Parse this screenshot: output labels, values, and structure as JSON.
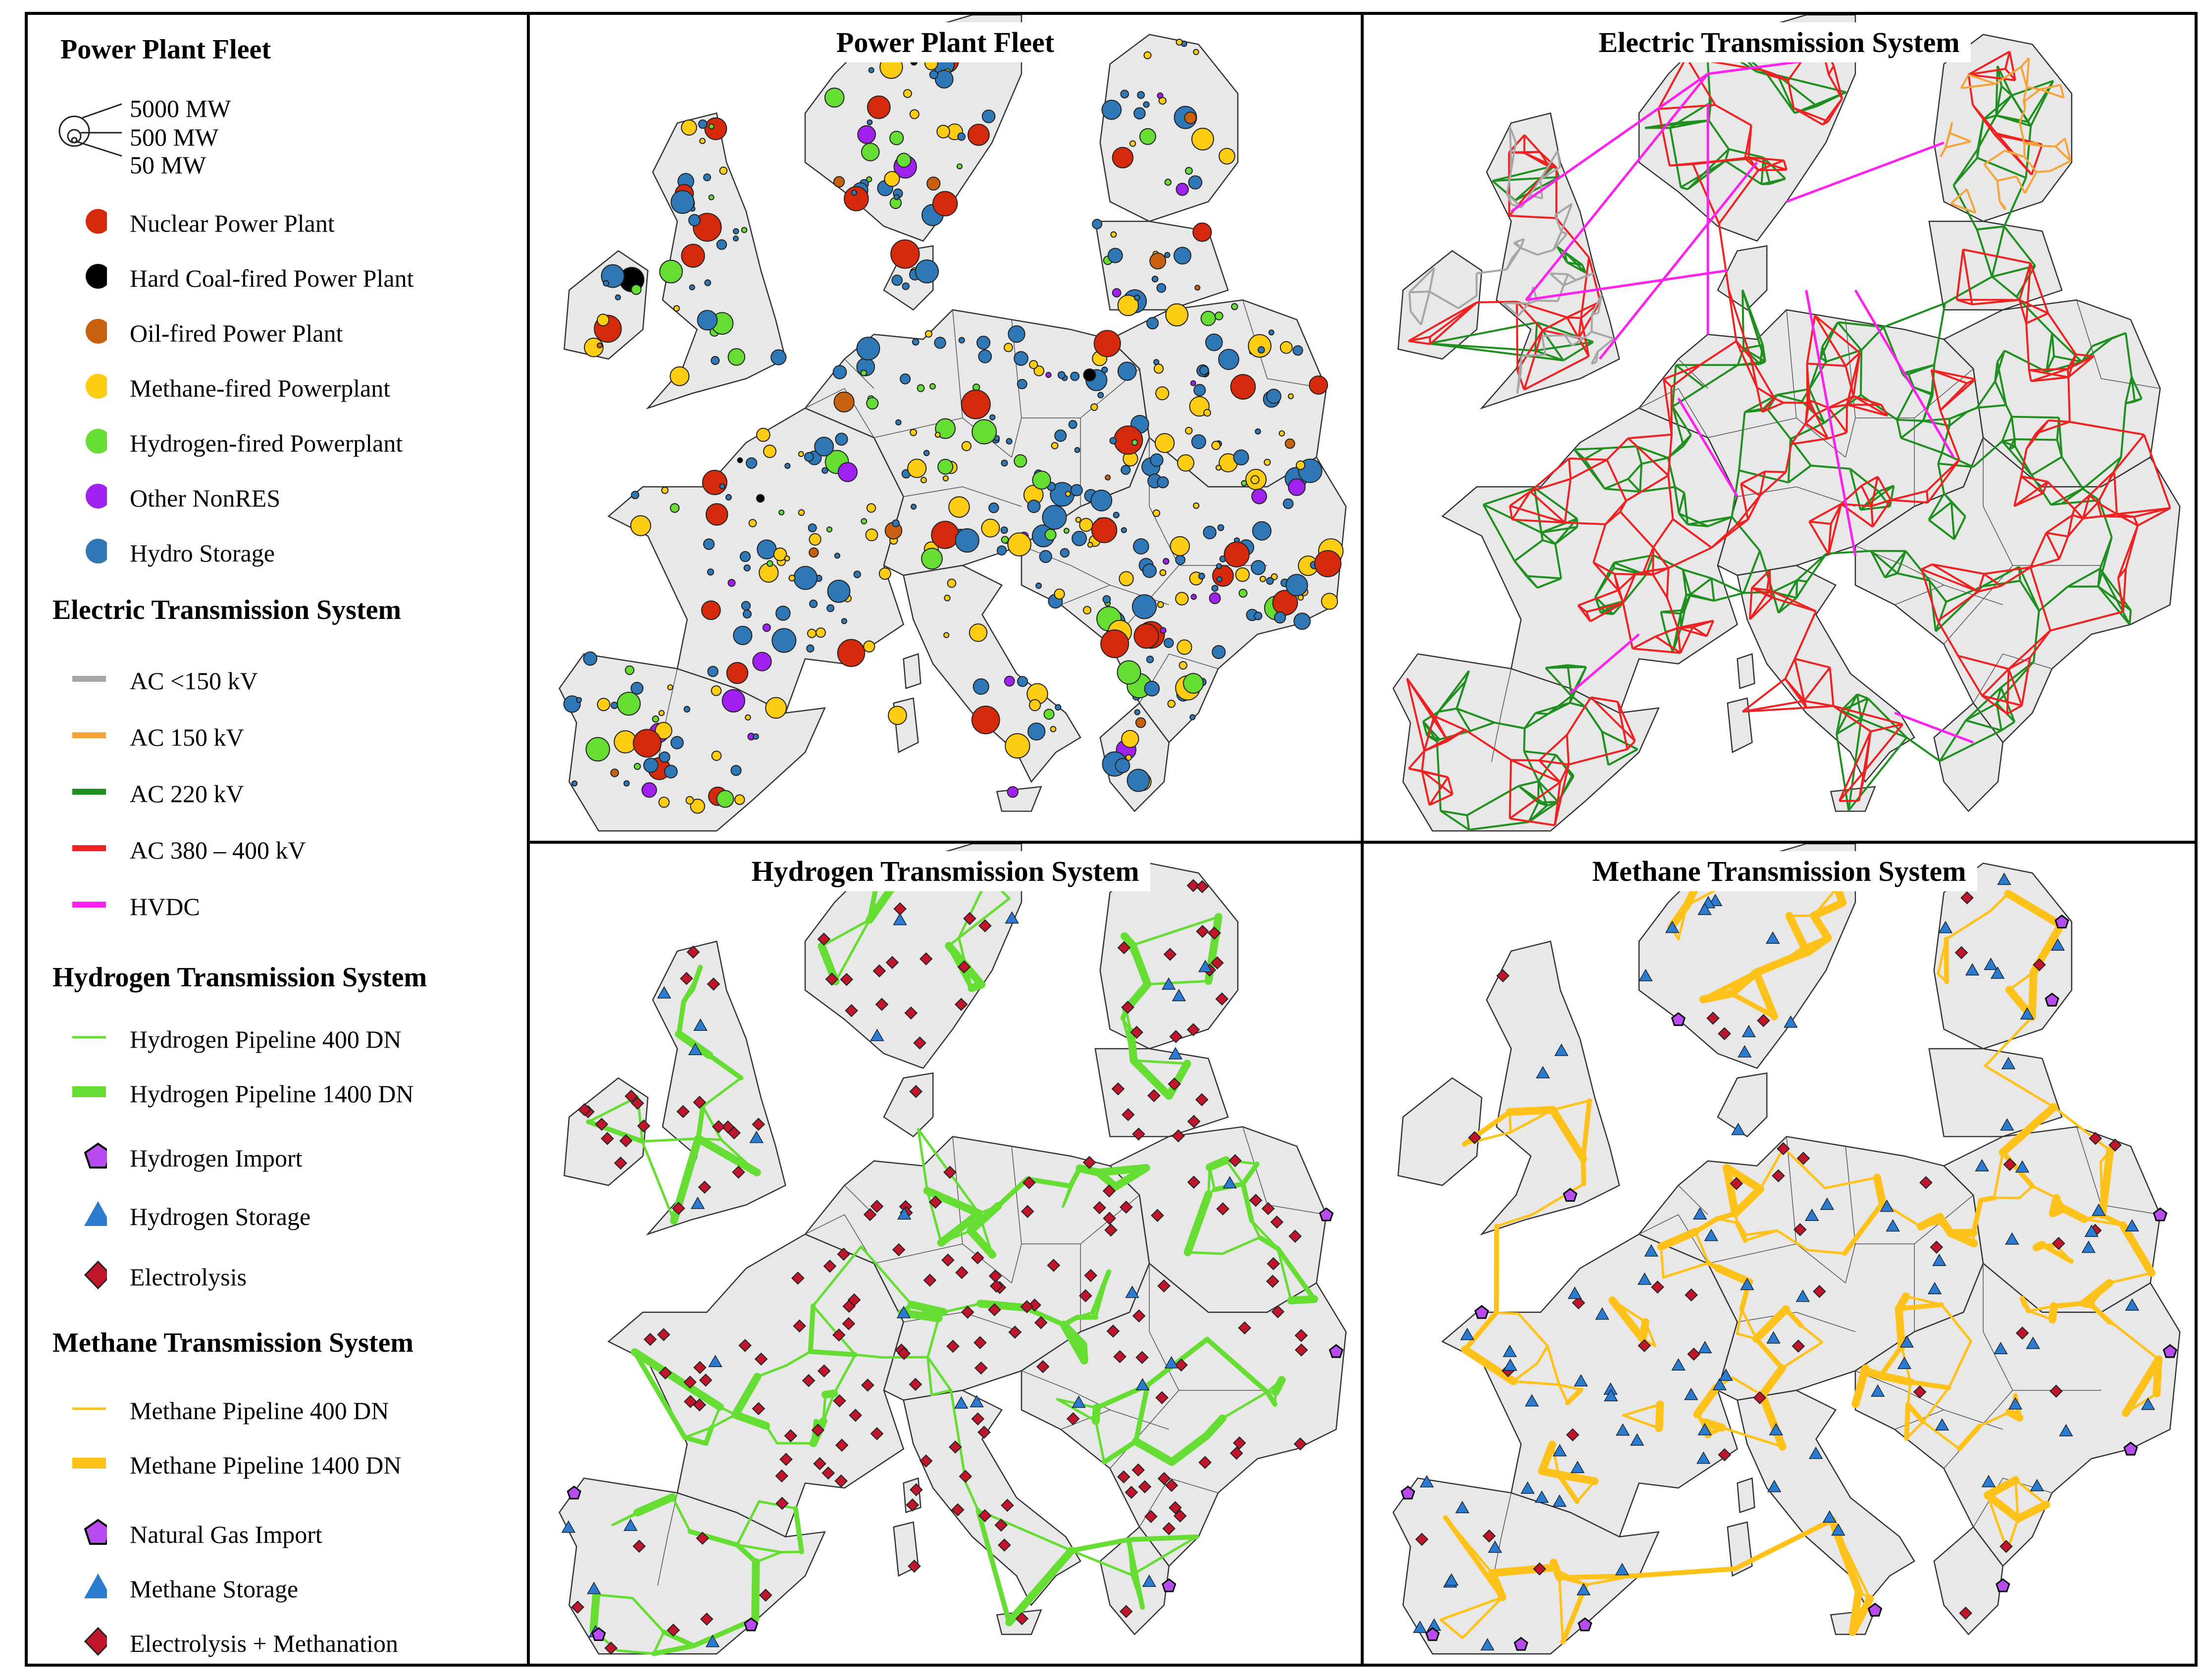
{
  "legend": {
    "power_plant_fleet": {
      "title": "Power Plant Fleet",
      "sizes": [
        "5000 MW",
        "500 MW",
        "50 MW"
      ],
      "items": [
        {
          "label": "Nuclear Power Plant",
          "color": "#d42a0b"
        },
        {
          "label": "Hard Coal-fired Power Plant",
          "color": "#000000"
        },
        {
          "label": "Oil-fired Power Plant",
          "color": "#c8600e"
        },
        {
          "label": "Methane-fired Powerplant",
          "color": "#ffcc14"
        },
        {
          "label": "Hydrogen-fired Powerplant",
          "color": "#66dd33"
        },
        {
          "label": "Other NonRES",
          "color": "#a020f0"
        },
        {
          "label": "Hydro Storage",
          "color": "#2e78b8"
        }
      ]
    },
    "electric": {
      "title": "Electric Transmission System",
      "items": [
        {
          "label": "AC <150 kV",
          "color": "#a6a6a6"
        },
        {
          "label": "AC 150 kV",
          "color": "#f6a33a"
        },
        {
          "label": "AC 220 kV",
          "color": "#1f8f1f"
        },
        {
          "label": "AC 380 – 400 kV",
          "color": "#ee2222"
        },
        {
          "label": "HVDC",
          "color": "#ff22ee"
        }
      ]
    },
    "hydrogen": {
      "title": "Hydrogen Transmission System",
      "items": [
        {
          "label": "Hydrogen Pipeline 400 DN",
          "color": "#66dd33"
        },
        {
          "label": "Hydrogen Pipeline 1400 DN",
          "color": "#66dd33"
        },
        {
          "label": "Hydrogen Import",
          "color": "#b84cf0"
        },
        {
          "label": "Hydrogen Storage",
          "color": "#2b7bd0"
        },
        {
          "label": "Electrolysis",
          "color": "#c0152b"
        }
      ]
    },
    "methane": {
      "title": "Methane Transmission System",
      "items": [
        {
          "label": "Methane Pipeline 400 DN",
          "color": "#ffc21a"
        },
        {
          "label": "Methane Pipeline 1400 DN",
          "color": "#ffc21a"
        },
        {
          "label": "Natural Gas Import",
          "color": "#b84cf0"
        },
        {
          "label": "Methane Storage",
          "color": "#2b7bd0"
        },
        {
          "label": "Electrolysis + Methanation",
          "color": "#c0152b"
        }
      ]
    }
  },
  "panels": {
    "p1": {
      "title": "Power Plant Fleet"
    },
    "p2": {
      "title": "Electric Transmission System"
    },
    "p3": {
      "title": "Hydrogen Transmission System"
    },
    "p4": {
      "title": "Methane Transmission System"
    }
  },
  "map": {
    "land_color": "#e8e8e8",
    "border_color": "#555555",
    "sea_color": "#ffffff"
  }
}
